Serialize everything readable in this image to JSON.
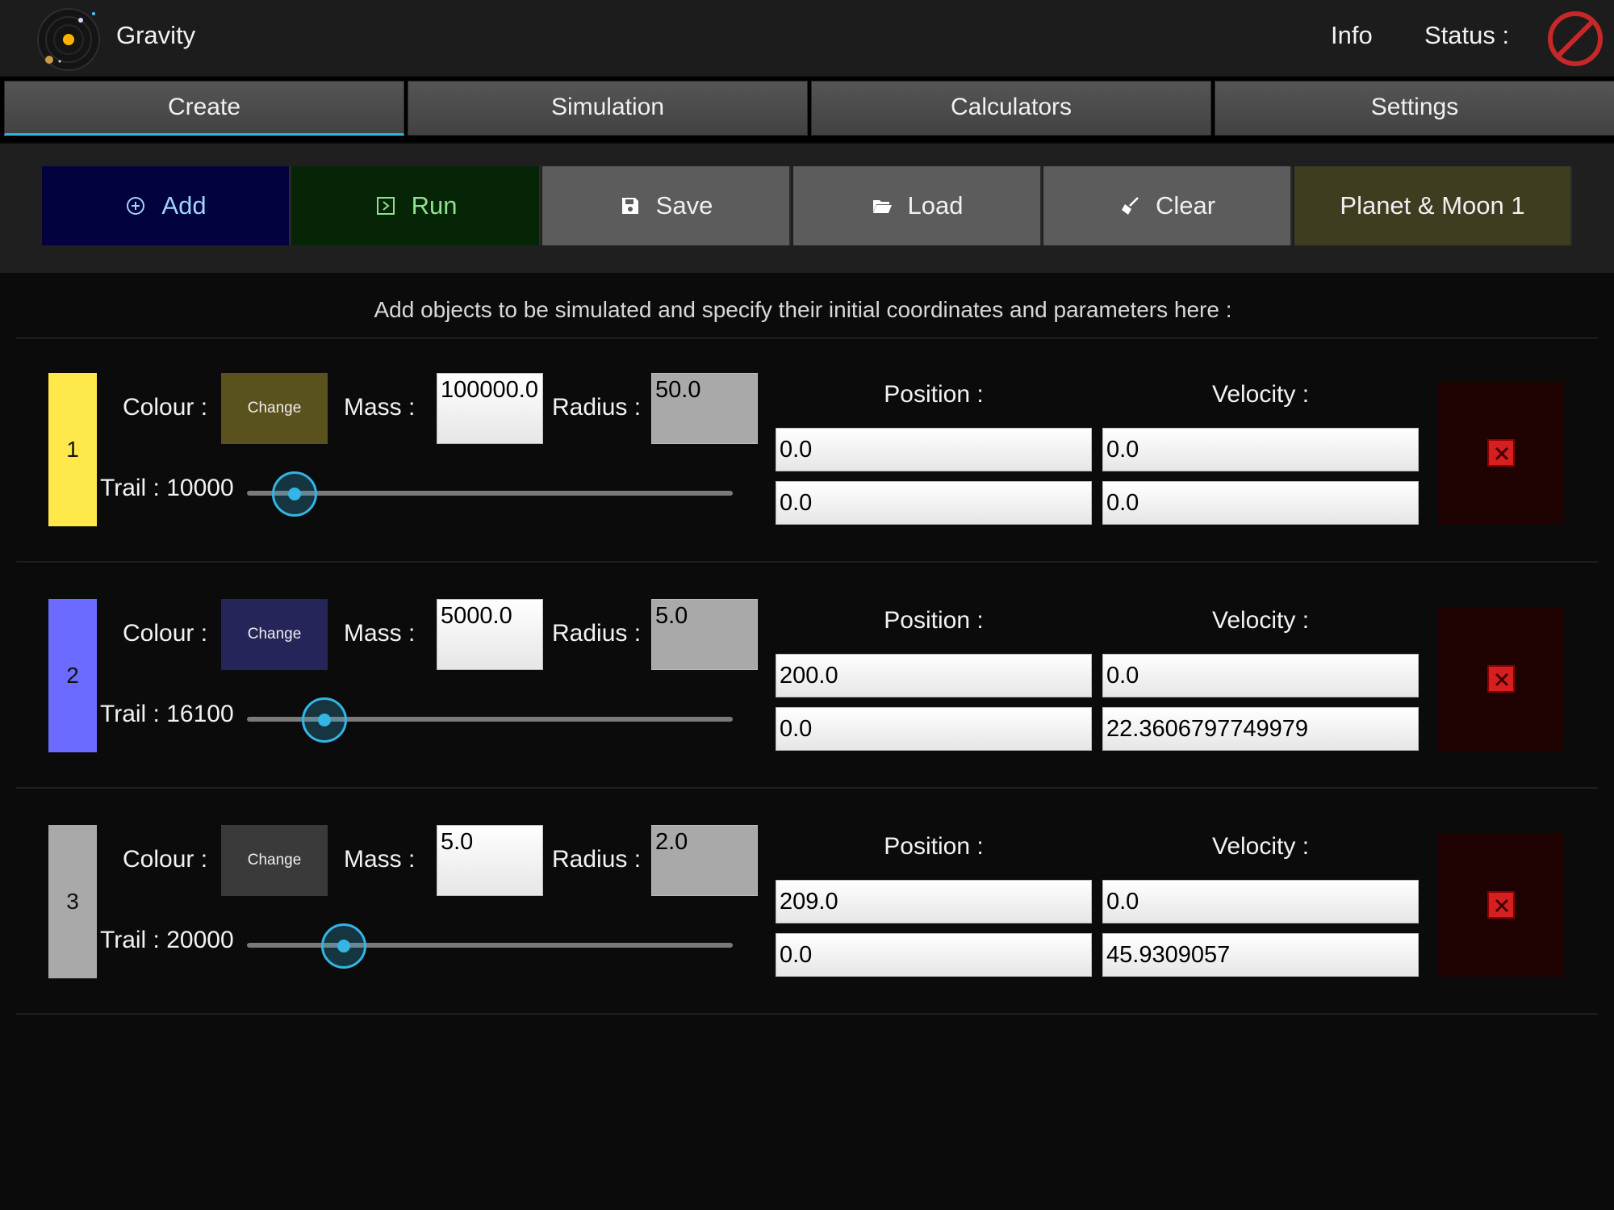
{
  "app": {
    "title": "Gravity",
    "info": "Info",
    "status_label": "Status :"
  },
  "tabs": [
    {
      "label": "Create"
    },
    {
      "label": "Simulation"
    },
    {
      "label": "Calculators"
    },
    {
      "label": "Settings"
    }
  ],
  "toolbar": {
    "add": "Add",
    "run": "Run",
    "save": "Save",
    "load": "Load",
    "clear": "Clear",
    "preset": "Planet & Moon 1"
  },
  "hint": "Add objects to be simulated and specify their initial coordinates and parameters here :",
  "labels": {
    "colour": "Colour :",
    "change": "Change",
    "mass": "Mass :",
    "radius": "Radius :",
    "trail": "Trail :",
    "position": "Position :",
    "velocity": "Velocity :"
  },
  "objects": [
    {
      "index": "1",
      "color": "#ffe94a",
      "change_bg": "#5a521c",
      "mass": "100000.0",
      "radius": "50.0",
      "trail_value": "10000",
      "trail_fraction": 0.1,
      "pos_x": "0.0",
      "pos_y": "0.0",
      "vel_x": "0.0",
      "vel_y": "0.0"
    },
    {
      "index": "2",
      "color": "#6b6bff",
      "change_bg": "#25255a",
      "mass": "5000.0",
      "radius": "5.0",
      "trail_value": "16100",
      "trail_fraction": 0.161,
      "pos_x": "200.0",
      "pos_y": "0.0",
      "vel_x": "0.0",
      "vel_y": "22.3606797749979"
    },
    {
      "index": "3",
      "color": "#a9a9a9",
      "change_bg": "#3a3a3a",
      "mass": "5.0",
      "radius": "2.0",
      "trail_value": "20000",
      "trail_fraction": 0.2,
      "pos_x": "209.0",
      "pos_y": "0.0",
      "vel_x": "0.0",
      "vel_y": "45.9309057"
    }
  ]
}
